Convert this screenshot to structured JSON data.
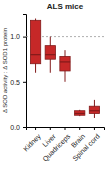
{
  "chart_data": {
    "type": "box",
    "title": "ALS mice",
    "y_label": "Δ SOD activity : Δ SOD1 protein",
    "categories": [
      "Kidney",
      "Liver",
      "Quadriceps",
      "Brain",
      "Spinal cord"
    ],
    "min": [
      0.6,
      0.6,
      0.5,
      0.12,
      0.1
    ],
    "q1": [
      0.7,
      0.75,
      0.62,
      0.13,
      0.15
    ],
    "median": [
      0.8,
      0.8,
      0.72,
      0.15,
      0.18
    ],
    "q3": [
      1.18,
      0.9,
      0.78,
      0.18,
      0.23
    ],
    "max": [
      1.2,
      1.0,
      0.85,
      0.19,
      0.3
    ],
    "color": "#c62828",
    "reference_line": 1,
    "ylim": [
      0,
      1.25
    ],
    "yticks": [
      {
        "value": 0,
        "label": "0.0"
      },
      {
        "value": 0.5,
        "label": "0.5"
      },
      {
        "value": 1,
        "label": "1.0"
      }
    ]
  }
}
